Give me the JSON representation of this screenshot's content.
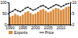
{
  "chart_data": {
    "type": "bar",
    "categories": [
      1990,
      null,
      null,
      null,
      null,
      1995,
      null,
      null,
      null,
      null,
      2000,
      null,
      null,
      null,
      null,
      2005,
      null,
      null,
      null,
      null,
      2010,
      null,
      null,
      null
    ],
    "series": [
      {
        "name": "Exports",
        "type": "bar",
        "color": "#d98c3e",
        "values": [
          35,
          40,
          48,
          42,
          38,
          45,
          55,
          60,
          52,
          46,
          50,
          58,
          66,
          70,
          62,
          55,
          60,
          68,
          75,
          72,
          65,
          70,
          78,
          82
        ]
      },
      {
        "name": "Price",
        "type": "line",
        "color": "#222222",
        "axis": "y2",
        "marker": "circle",
        "values": [
          5.5,
          6,
          6.8,
          6.2,
          5.8,
          6.5,
          7.4,
          7.8,
          7.1,
          6.5,
          6.9,
          7.6,
          8.3,
          8.6,
          7.9,
          7.2,
          7.7,
          8.4,
          9,
          8.7,
          8,
          8.5,
          9.2,
          9.5
        ]
      }
    ],
    "ylim": [
      0,
      100
    ],
    "yticks": [
      0,
      50,
      100
    ],
    "y2lim": [
      0,
      10
    ],
    "y2ticks": [
      0,
      5,
      10
    ],
    "legend": "bottom"
  }
}
